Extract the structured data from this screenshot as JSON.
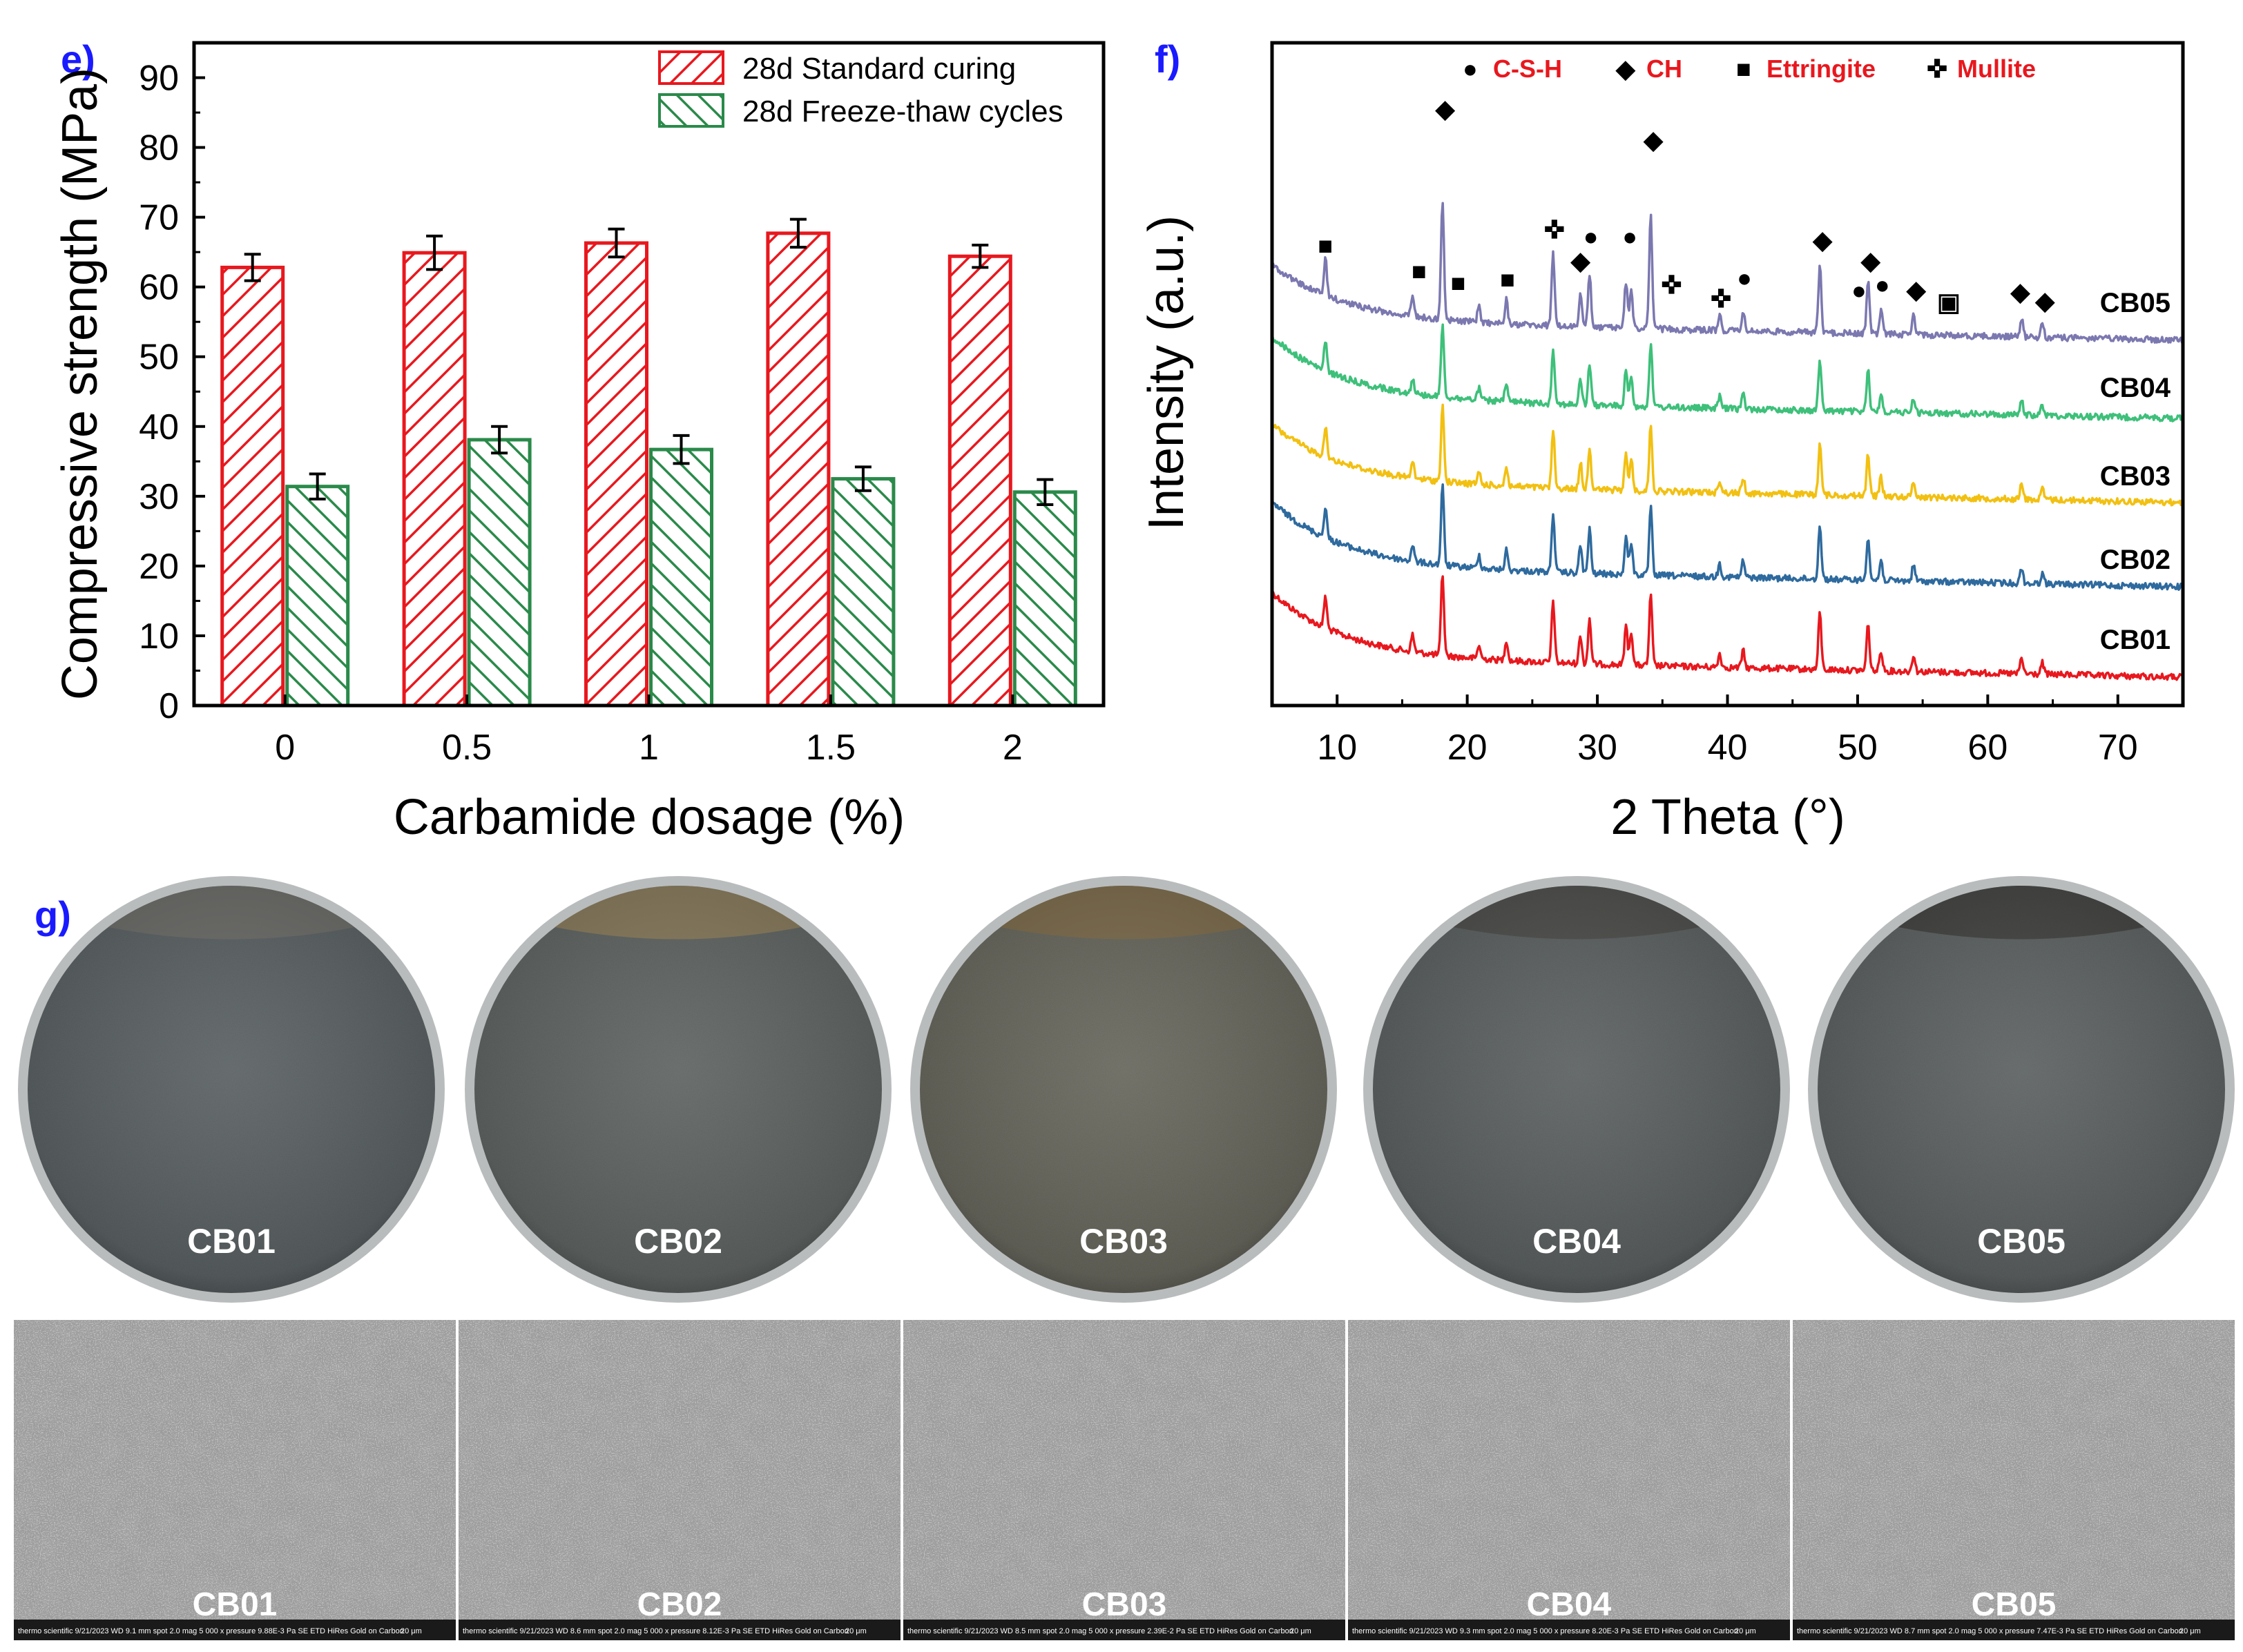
{
  "panels": {
    "e": "e)",
    "f": "f)",
    "g": "g)"
  },
  "chart_data": [
    {
      "id": "e",
      "type": "bar",
      "title": "",
      "xlabel": "Carbamide dosage (%)",
      "ylabel": "Compressive strength (MPa)",
      "categories": [
        "0",
        "0.5",
        "1",
        "1.5",
        "2"
      ],
      "ylim": [
        0,
        95
      ],
      "yticks": [
        0,
        10,
        20,
        30,
        40,
        50,
        60,
        70,
        80,
        90
      ],
      "legend_position": "top-right",
      "series": [
        {
          "name": "28d Standard curing",
          "color": "#e8181e",
          "values": [
            62.8,
            64.9,
            66.3,
            67.7,
            64.4
          ],
          "errors": [
            1.9,
            2.4,
            2.0,
            2.0,
            1.6
          ]
        },
        {
          "name": "28d Freeze-thaw cycles",
          "color": "#2a8a4a",
          "values": [
            31.4,
            38.1,
            36.7,
            32.5,
            30.6
          ],
          "errors": [
            1.8,
            1.9,
            2.0,
            1.7,
            1.8
          ]
        }
      ]
    },
    {
      "id": "f",
      "type": "line",
      "title": "",
      "xlabel": "2 Theta (°)",
      "ylabel": "Intensity (a.u.)",
      "xlim": [
        5,
        75
      ],
      "xticks": [
        10,
        20,
        30,
        40,
        50,
        60,
        70
      ],
      "legend": [
        {
          "symbol": "●",
          "label": "C-S-H"
        },
        {
          "symbol": "◆",
          "label": "CH"
        },
        {
          "symbol": "■",
          "label": "Ettringite"
        },
        {
          "symbol": "✜",
          "label": "Mullite"
        }
      ],
      "legend_color": "#e8181e",
      "peaks": [
        {
          "x": 9.1,
          "h": 0.28
        },
        {
          "x": 15.8,
          "h": 0.15
        },
        {
          "x": 18.1,
          "h": 1.0
        },
        {
          "x": 20.9,
          "h": 0.12
        },
        {
          "x": 23.0,
          "h": 0.18
        },
        {
          "x": 26.6,
          "h": 0.55
        },
        {
          "x": 28.7,
          "h": 0.25
        },
        {
          "x": 29.4,
          "h": 0.4
        },
        {
          "x": 32.2,
          "h": 0.35
        },
        {
          "x": 32.6,
          "h": 0.3
        },
        {
          "x": 34.1,
          "h": 1.0
        },
        {
          "x": 39.4,
          "h": 0.12
        },
        {
          "x": 41.2,
          "h": 0.15
        },
        {
          "x": 47.1,
          "h": 0.5
        },
        {
          "x": 50.8,
          "h": 0.4
        },
        {
          "x": 51.8,
          "h": 0.18
        },
        {
          "x": 54.3,
          "h": 0.15
        },
        {
          "x": 62.6,
          "h": 0.14
        },
        {
          "x": 64.2,
          "h": 0.1
        }
      ],
      "series": [
        {
          "name": "CB01",
          "color": "#e8181e"
        },
        {
          "name": "CB02",
          "color": "#2e6a9e"
        },
        {
          "name": "CB03",
          "color": "#f2c011"
        },
        {
          "name": "CB04",
          "color": "#3ec07a"
        },
        {
          "name": "CB05",
          "color": "#7b78b0"
        }
      ],
      "markers": [
        {
          "symbol": "■",
          "x": 9.1,
          "trace": "CB05"
        },
        {
          "symbol": "◆",
          "x": 18.3,
          "trace": "top"
        },
        {
          "symbol": "■",
          "x": 16.3,
          "trace": "CB05"
        },
        {
          "symbol": "■",
          "x": 19.3,
          "trace": "CB05"
        },
        {
          "symbol": "■",
          "x": 23.1,
          "trace": "CB05"
        },
        {
          "symbol": "✜",
          "x": 26.7,
          "trace": "CB05"
        },
        {
          "symbol": "◆",
          "x": 28.7,
          "trace": "CB05"
        },
        {
          "symbol": "●",
          "x": 29.5,
          "trace": "CB05"
        },
        {
          "symbol": "●",
          "x": 32.5,
          "trace": "CB05"
        },
        {
          "symbol": "◆",
          "x": 34.3,
          "trace": "top"
        },
        {
          "symbol": "✜",
          "x": 35.7,
          "trace": "CB05"
        },
        {
          "symbol": "✜",
          "x": 39.5,
          "trace": "CB05"
        },
        {
          "symbol": "●",
          "x": 41.3,
          "trace": "CB05"
        },
        {
          "symbol": "◆",
          "x": 47.3,
          "trace": "CB05"
        },
        {
          "symbol": "●",
          "x": 50.1,
          "trace": "CB05"
        },
        {
          "symbol": "◆",
          "x": 51.0,
          "trace": "CB05"
        },
        {
          "symbol": "●",
          "x": 51.9,
          "trace": "CB05"
        },
        {
          "symbol": "◆",
          "x": 54.5,
          "trace": "CB05"
        },
        {
          "symbol": "▣",
          "x": 57.0,
          "trace": "CB05"
        },
        {
          "symbol": "◆",
          "x": 62.5,
          "trace": "CB05"
        },
        {
          "symbol": "◆",
          "x": 64.4,
          "trace": "CB05"
        }
      ]
    }
  ],
  "photos": [
    {
      "label": "CB01",
      "surface": "#5d6466",
      "band": "#6b6b66"
    },
    {
      "label": "CB02",
      "surface": "#626765",
      "band": "#8a7a58"
    },
    {
      "label": "CB03",
      "surface": "#6a6a60",
      "band": "#7c6a48"
    },
    {
      "label": "CB04",
      "surface": "#5e6363",
      "band": "#4a4a46"
    },
    {
      "label": "CB05",
      "surface": "#5f6464",
      "band": "#3e3e3c"
    }
  ],
  "sem": [
    {
      "label": "CB01",
      "footer": "thermo scientific  9/21/2023  WD 9.1 mm  spot 2.0  mag 5 000 x  pressure 9.88E-3 Pa  SE  ETD  HiRes Gold on Carbon"
    },
    {
      "label": "CB02",
      "footer": "thermo scientific  9/21/2023  WD 8.6 mm  spot 2.0  mag 5 000 x  pressure 8.12E-3 Pa  SE  ETD  HiRes Gold on Carbon"
    },
    {
      "label": "CB03",
      "footer": "thermo scientific  9/21/2023  WD 8.5 mm  spot 2.0  mag 5 000 x  pressure 2.39E-2 Pa  SE  ETD  HiRes Gold on Carbon"
    },
    {
      "label": "CB04",
      "footer": "thermo scientific  9/21/2023  WD 9.3 mm  spot 2.0  mag 5 000 x  pressure 8.20E-3 Pa  SE  ETD  HiRes Gold on Carbon"
    },
    {
      "label": "CB05",
      "footer": "thermo scientific  9/21/2023  WD 8.7 mm  spot 2.0  mag 5 000 x  pressure 7.47E-3 Pa  SE  ETD  HiRes Gold on Carbon"
    }
  ],
  "sem_scale": "20 μm"
}
